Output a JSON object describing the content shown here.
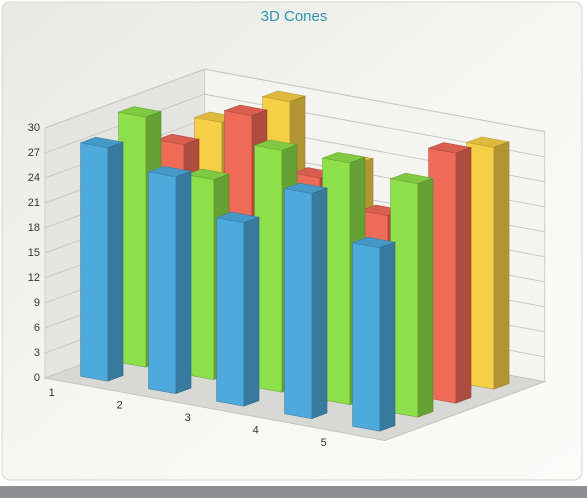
{
  "chart_data": {
    "type": "bar3d",
    "title": "3D Cones",
    "categories": [
      "1",
      "2",
      "3",
      "4",
      "5"
    ],
    "series": [
      {
        "color": "#4ea9dc",
        "values": [
          28,
          26,
          22,
          27,
          22
        ]
      },
      {
        "color": "#8ee04a",
        "values": [
          30,
          24,
          29,
          29,
          28
        ]
      },
      {
        "color": "#f06a58",
        "values": [
          25,
          30,
          24,
          21,
          30
        ]
      },
      {
        "color": "#f5cf45",
        "values": [
          26,
          30,
          24,
          20,
          29
        ]
      }
    ],
    "ylim": [
      0,
      30
    ],
    "yticks": [
      0,
      3,
      6,
      9,
      12,
      15,
      18,
      21,
      24,
      27,
      30
    ],
    "grid": true
  }
}
